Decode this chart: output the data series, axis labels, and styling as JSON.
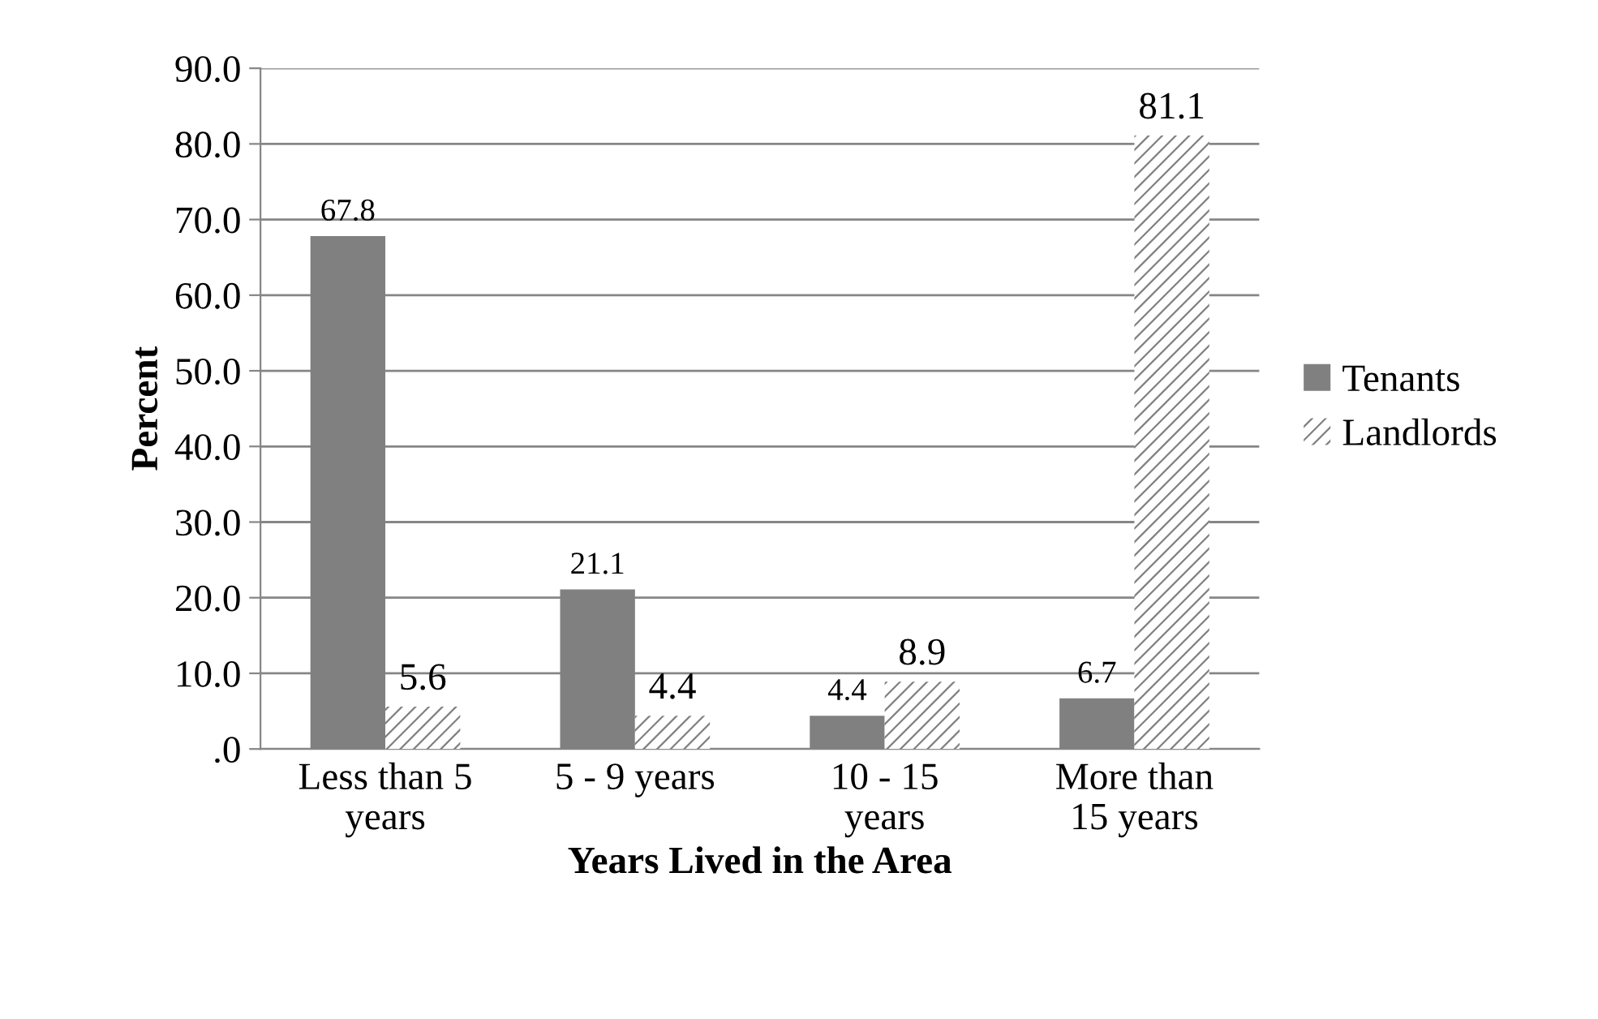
{
  "chart_data": {
    "type": "bar",
    "xlabel": "Years Lived in the Area",
    "ylabel": "Percent",
    "categories": [
      "Less than 5\nyears",
      "5 - 9 years",
      "10 - 15\nyears",
      "More than\n15 years"
    ],
    "series": [
      {
        "name": "Tenants",
        "color": "#808080",
        "values": [
          67.8,
          21.1,
          4.4,
          6.7
        ]
      },
      {
        "name": "Landlords",
        "color": "#808080",
        "values": [
          5.6,
          4.4,
          8.9,
          81.1
        ]
      }
    ],
    "ylim": [
      0,
      90
    ],
    "yticks": [
      {
        "value": 0,
        "label": ".0"
      },
      {
        "value": 10,
        "label": "10.0"
      },
      {
        "value": 20,
        "label": "20.0"
      },
      {
        "value": 30,
        "label": "30.0"
      },
      {
        "value": 40,
        "label": "40.0"
      },
      {
        "value": 50,
        "label": "50.0"
      },
      {
        "value": 60,
        "label": "60.0"
      },
      {
        "value": 70,
        "label": "70.0"
      },
      {
        "value": 80,
        "label": "80.0"
      },
      {
        "value": 90,
        "label": "90.0"
      }
    ],
    "grid": "y",
    "legend": "right",
    "data_labels": true
  }
}
